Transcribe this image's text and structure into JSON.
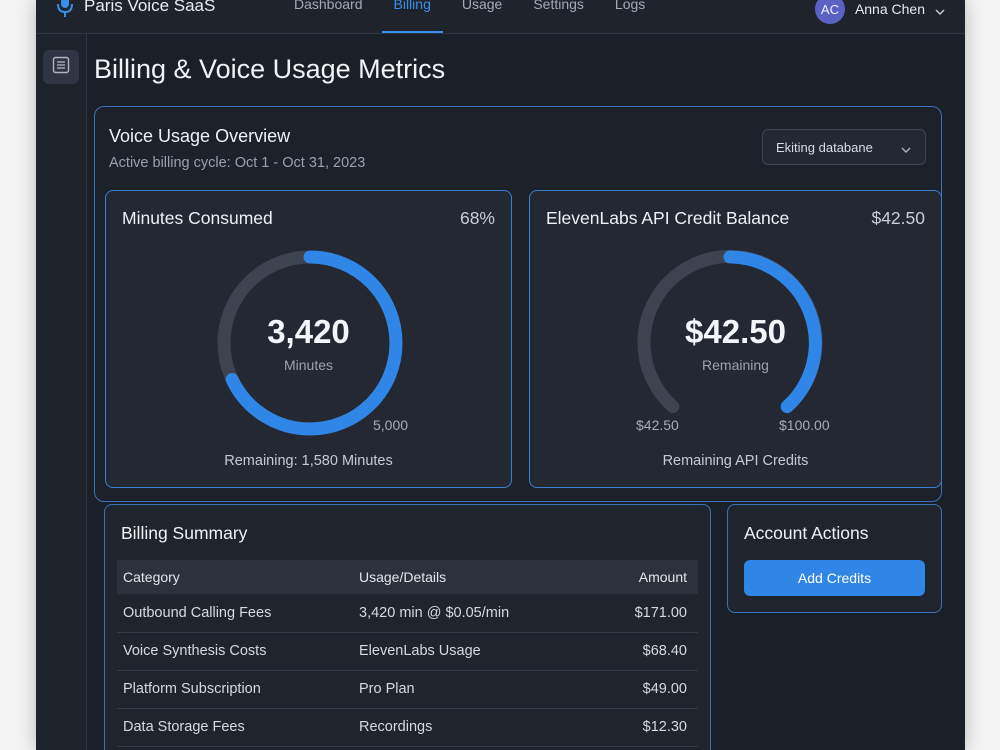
{
  "app": {
    "name": "Paris Voice SaaS",
    "icon": "microphone-icon",
    "accent": "#3b8ee8"
  },
  "nav": {
    "items": [
      {
        "label": "Dashboard",
        "active": false
      },
      {
        "label": "Billing",
        "active": true
      },
      {
        "label": "Usage",
        "active": false
      },
      {
        "label": "Settings",
        "active": false
      },
      {
        "label": "Logs",
        "active": false
      }
    ]
  },
  "user": {
    "initials": "AC",
    "name": "Anna Chen"
  },
  "sidebar": {
    "icon": "document-list-icon"
  },
  "page": {
    "title": "Billing & Voice Usage Metrics"
  },
  "overview": {
    "title": "Voice Usage Overview",
    "subtitle": "Active billing cycle: Oct 1 - Oct 31, 2023",
    "dropdown_value": "Ekiting databane"
  },
  "minutes_card": {
    "title": "Minutes Consumed",
    "percent_label": "68%",
    "percent": 0.68,
    "value": "3,420",
    "unit": "Minutes",
    "max_label": "5,000",
    "footer": "Remaining: 1,580 Minutes"
  },
  "credit_card": {
    "title": "ElevenLabs API Credit Balance",
    "balance": "$42.50",
    "value": "$42.50",
    "unit": "Remaining",
    "min_label": "$42.50",
    "max_label": "$100.00",
    "footer": "Remaining API Credits"
  },
  "billing": {
    "title": "Billing Summary",
    "headers": {
      "category": "Category",
      "usage": "Usage/Details",
      "amount": "Amount"
    },
    "rows": [
      {
        "category": "Outbound Calling Fees",
        "usage": "3,420 min @ $0.05/min",
        "amount": "$171.00"
      },
      {
        "category": "Voice Synthesis Costs",
        "usage": "ElevenLabs Usage",
        "amount": "$68.40"
      },
      {
        "category": "Platform Subscription",
        "usage": "Pro Plan",
        "amount": "$49.00"
      },
      {
        "category": "Data Storage Fees",
        "usage": "Recordings",
        "amount": "$12.30"
      }
    ]
  },
  "actions": {
    "title": "Account Actions",
    "add_credits": "Add Credits"
  }
}
